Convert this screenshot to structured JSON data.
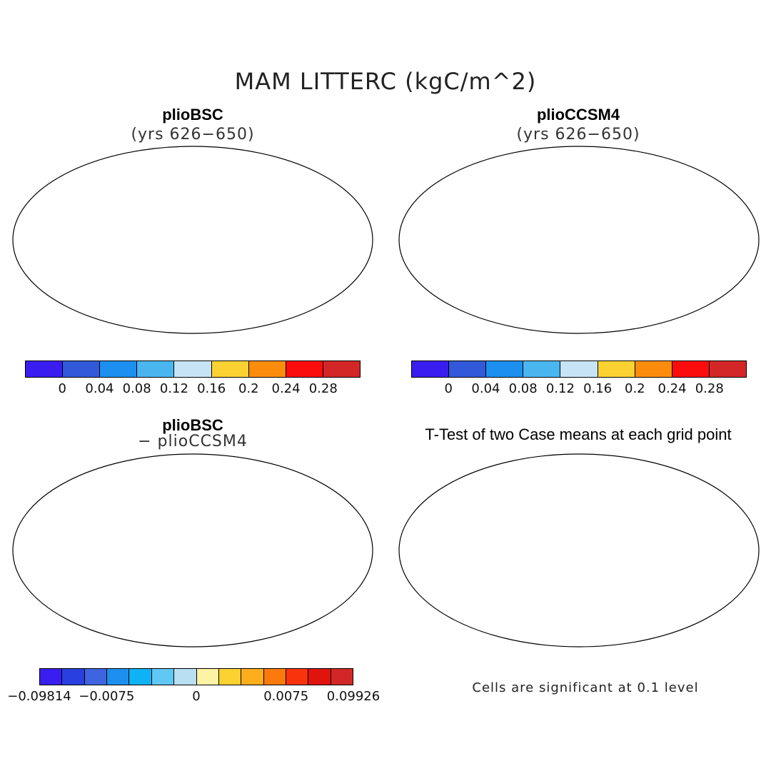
{
  "title": "MAM LITTERC (kgC/m^2)",
  "panels": {
    "tl": {
      "title": "plioBSC",
      "subtitle": "(yrs 626−650)"
    },
    "tr": {
      "title": "plioCCSM4",
      "subtitle": "(yrs 626−650)"
    },
    "bl": {
      "title": "plioBSC",
      "subtitle": "− plioCCSM4"
    },
    "br": {
      "title": "T-Test of two Case means at each grid point"
    }
  },
  "colorbar_top": {
    "colors": [
      "#3a1ef0",
      "#3159d9",
      "#1d8fef",
      "#49b6ef",
      "#c7e4f5",
      "#fcd233",
      "#fc8d0c",
      "#fb0d0d",
      "#d32727"
    ],
    "ticks": [
      "0",
      "0.04",
      "0.08",
      "0.12",
      "0.16",
      "0.2",
      "0.24",
      "0.28"
    ]
  },
  "colorbar_diff": {
    "colors": [
      "#3a1ef0",
      "#2a3fe0",
      "#3f64e0",
      "#1d8fef",
      "#0fb2f5",
      "#5fc8f5",
      "#b8dff2",
      "#fdf3a4",
      "#fcd233",
      "#fcae1d",
      "#fc7a0c",
      "#fb330d",
      "#e0130d",
      "#d32727"
    ],
    "ticks": [
      "−0.09814",
      "−0.0075",
      "0",
      "0.0075",
      "0.09926"
    ]
  },
  "note": "Cells are significant at 0.1 level",
  "map_colors": {
    "ocean": "#ffffff",
    "outline": "#000000",
    "sig": "#ff1a1a"
  }
}
